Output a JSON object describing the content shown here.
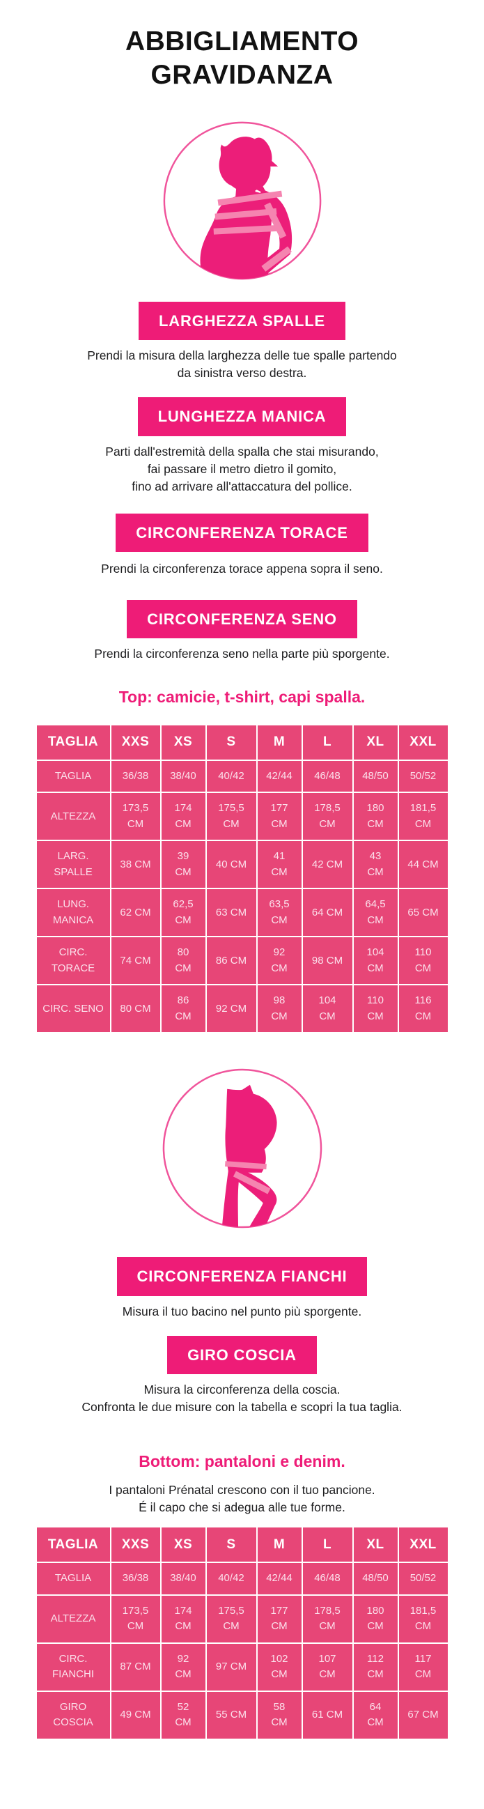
{
  "title": {
    "line1": "ABBIGLIAMENTO",
    "line2": "GRAVIDANZA"
  },
  "colors": {
    "accent_pink": "#EE1C77",
    "table_pink": "#E74677",
    "stripe_pink": "#F584B0",
    "circle_stroke_pink": "#F0549B",
    "text_dark": "#1D1D1F"
  },
  "illustrations": {
    "upper": "pregnant-woman-upper-body-with-measuring-tape",
    "lower": "pregnant-woman-lower-body-with-measuring-tape"
  },
  "top_section": {
    "measures": [
      {
        "button": "LARGHEZZA SPALLE",
        "lines": [
          "Prendi la misura della larghezza delle tue spalle partendo",
          "da sinistra verso destra."
        ]
      },
      {
        "button": "LUNGHEZZA MANICA",
        "lines": [
          "Parti dall'estremità della spalla che stai misurando,",
          "fai passare il metro dietro il gomito,",
          "fino ad arrivare all'attaccatura del pollice."
        ]
      },
      {
        "button": "CIRCONFERENZA TORACE",
        "lines": [
          "Prendi la circonferenza torace appena sopra il seno."
        ]
      },
      {
        "button": "CIRCONFERENZA SENO",
        "lines": [
          "Prendi la circonferenza seno nella parte più sporgente."
        ]
      }
    ],
    "table_heading": "Top: camicie, t-shirt, capi spalla.",
    "table": {
      "header": [
        "TAGLIA",
        "XXS",
        "XS",
        "S",
        "M",
        "L",
        "XL",
        "XXL"
      ],
      "rows": [
        {
          "label": "TAGLIA",
          "values": [
            "36/38",
            "38/40",
            "40/42",
            "42/44",
            "46/48",
            "48/50",
            "50/52"
          ]
        },
        {
          "label": "ALTEZZA",
          "values": [
            "173,5 CM",
            "174 CM",
            "175,5 CM",
            "177 CM",
            "178,5 CM",
            "180 CM",
            "181,5 CM"
          ]
        },
        {
          "label": "LARG. SPALLE",
          "values": [
            "38 CM",
            "39 CM",
            "40 CM",
            "41 CM",
            "42 CM",
            "43 CM",
            "44 CM"
          ]
        },
        {
          "label": "LUNG. MANICA",
          "values": [
            "62 CM",
            "62,5 CM",
            "63 CM",
            "63,5 CM",
            "64 CM",
            "64,5 CM",
            "65 CM"
          ]
        },
        {
          "label": "CIRC. TORACE",
          "values": [
            "74 CM",
            "80 CM",
            "86 CM",
            "92 CM",
            "98 CM",
            "104 CM",
            "110 CM"
          ]
        },
        {
          "label": "CIRC. SENO",
          "values": [
            "80 CM",
            "86 CM",
            "92 CM",
            "98 CM",
            "104 CM",
            "110 CM",
            "116 CM"
          ]
        }
      ]
    }
  },
  "bottom_section": {
    "measures": [
      {
        "button": "CIRCONFERENZA FIANCHI",
        "lines": [
          "Misura il tuo bacino nel punto più sporgente."
        ]
      },
      {
        "button": "GIRO COSCIA",
        "lines": [
          "Misura la circonferenza della coscia.",
          "Confronta le due misure con la tabella e scopri la tua taglia."
        ]
      }
    ],
    "table_heading": "Bottom: pantaloni e denim.",
    "intro_lines": [
      "I pantaloni Prénatal crescono con il tuo pancione.",
      "É il capo che si adegua alle tue forme."
    ],
    "table": {
      "header": [
        "TAGLIA",
        "XXS",
        "XS",
        "S",
        "M",
        "L",
        "XL",
        "XXL"
      ],
      "rows": [
        {
          "label": "TAGLIA",
          "values": [
            "36/38",
            "38/40",
            "40/42",
            "42/44",
            "46/48",
            "48/50",
            "50/52"
          ]
        },
        {
          "label": "ALTEZZA",
          "values": [
            "173,5 CM",
            "174 CM",
            "175,5 CM",
            "177 CM",
            "178,5 CM",
            "180 CM",
            "181,5 CM"
          ]
        },
        {
          "label": "CIRC. FIANCHI",
          "values": [
            "87 CM",
            "92 CM",
            "97 CM",
            "102 CM",
            "107 CM",
            "112 CM",
            "117 CM"
          ]
        },
        {
          "label": "GIRO COSCIA",
          "values": [
            "49 CM",
            "52 CM",
            "55 CM",
            "58 CM",
            "61 CM",
            "64 CM",
            "67 CM"
          ]
        }
      ]
    }
  }
}
